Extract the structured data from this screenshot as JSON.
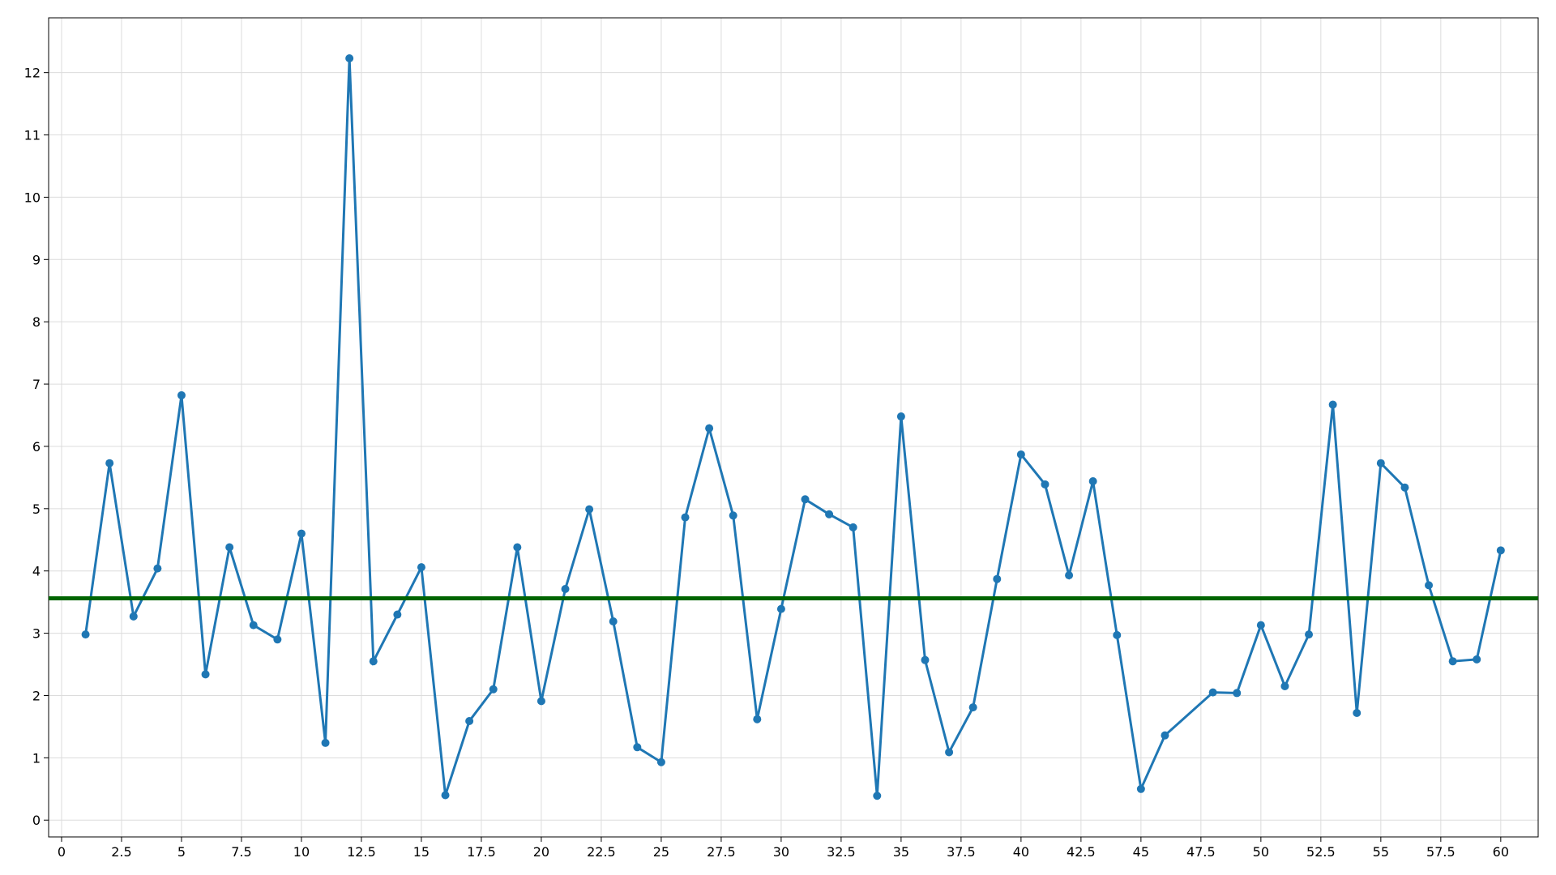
{
  "chart_data": {
    "type": "line",
    "x": [
      1,
      2,
      3,
      4,
      5,
      6,
      7,
      8,
      9,
      10,
      11,
      12,
      13,
      14,
      15,
      16,
      17,
      18,
      19,
      20,
      21,
      22,
      23,
      24,
      25,
      26,
      27,
      28,
      29,
      30,
      31,
      32,
      33,
      34,
      35,
      36,
      37,
      38,
      39,
      40,
      41,
      42,
      43,
      44,
      45,
      46,
      48,
      49,
      50,
      51,
      52,
      53,
      54,
      55,
      56,
      57,
      58,
      59,
      60
    ],
    "series": [
      {
        "color": "#1f77b4",
        "values": [
          2.98,
          5.73,
          3.27,
          4.04,
          6.82,
          2.34,
          4.38,
          3.13,
          2.9,
          4.6,
          1.24,
          12.23,
          2.55,
          3.3,
          4.06,
          0.4,
          1.59,
          2.1,
          4.38,
          1.91,
          3.71,
          4.99,
          3.19,
          1.17,
          0.93,
          4.86,
          6.29,
          4.89,
          1.62,
          3.39,
          5.15,
          4.91,
          4.7,
          0.39,
          6.48,
          2.57,
          1.09,
          1.81,
          3.87,
          5.87,
          5.39,
          3.93,
          5.44,
          2.97,
          0.5,
          1.36,
          2.05,
          2.04,
          3.13,
          2.15,
          2.98,
          6.67,
          1.72,
          5.73,
          5.34,
          3.77,
          2.55,
          2.58,
          4.33
        ]
      }
    ],
    "hline": {
      "value": 3.56,
      "color": "#006400"
    },
    "xlim": [
      -0.54,
      61.56
    ],
    "ylim": [
      -0.27,
      12.88
    ],
    "xticks": [
      0,
      2.5,
      5,
      7.5,
      10,
      12.5,
      15,
      17.5,
      20,
      22.5,
      25,
      27.5,
      30,
      32.5,
      35,
      37.5,
      40,
      42.5,
      45,
      47.5,
      50,
      52.5,
      55,
      57.5,
      60
    ],
    "yticks": [
      0,
      1,
      2,
      3,
      4,
      5,
      6,
      7,
      8,
      9,
      10,
      11,
      12
    ],
    "grid": true
  }
}
